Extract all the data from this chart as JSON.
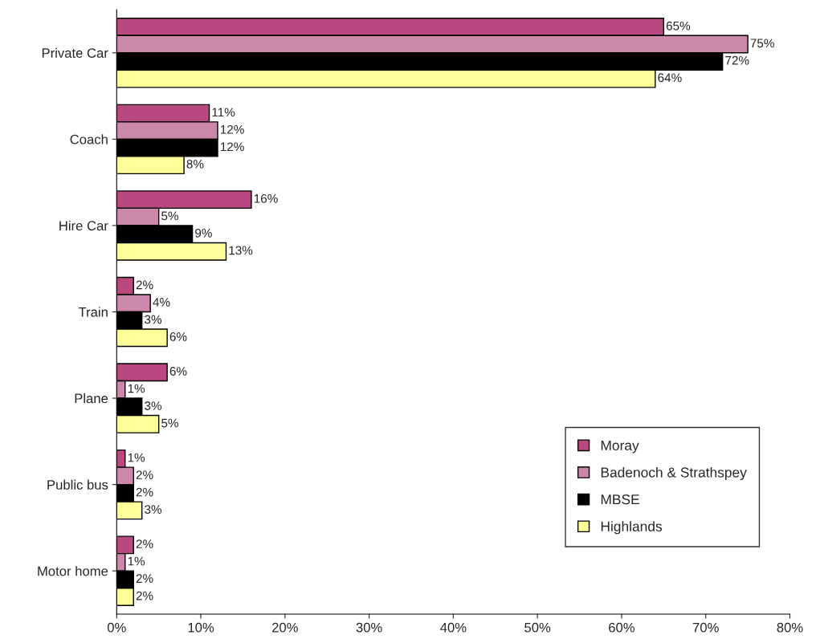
{
  "chart_data": {
    "type": "bar",
    "orientation": "horizontal",
    "categories": [
      "Private Car",
      "Coach",
      "Hire Car",
      "Train",
      "Plane",
      "Public bus",
      "Motor home"
    ],
    "series": [
      {
        "name": "Moray",
        "color": "#b8487f",
        "values": [
          65,
          11,
          16,
          2,
          6,
          1,
          2
        ],
        "value_labels": [
          "65%",
          "11%",
          "16%",
          "2%",
          "6%",
          "1%",
          "2%"
        ]
      },
      {
        "name": "Badenoch & Strathspey",
        "color": "#cc88aa",
        "values": [
          75,
          12,
          5,
          4,
          1,
          2,
          1
        ],
        "value_labels": [
          "75%",
          "12%",
          "5%",
          "4%",
          "1%",
          "2%",
          "1%"
        ]
      },
      {
        "name": "MBSE",
        "color": "#000000",
        "values": [
          72,
          12,
          9,
          3,
          3,
          2,
          2
        ],
        "value_labels": [
          "72%",
          "12%",
          "9%",
          "3%",
          "3%",
          "2%",
          "2%"
        ]
      },
      {
        "name": "Highlands",
        "color": "#ffff99",
        "values": [
          64,
          8,
          13,
          6,
          5,
          3,
          2
        ],
        "value_labels": [
          "64%",
          "8%",
          "13%",
          "6%",
          "5%",
          "3%",
          "2%"
        ]
      }
    ],
    "xlim": [
      0,
      80
    ],
    "xticks": [
      {
        "value": 0,
        "label": "0%"
      },
      {
        "value": 10,
        "label": "10%"
      },
      {
        "value": 20,
        "label": "20%"
      },
      {
        "value": 30,
        "label": "30%"
      },
      {
        "value": 40,
        "label": "40%"
      },
      {
        "value": 50,
        "label": "50%"
      },
      {
        "value": 60,
        "label": "60%"
      },
      {
        "value": 70,
        "label": "70%"
      },
      {
        "value": 80,
        "label": "80%"
      }
    ],
    "grid": false,
    "legend": "bottom right"
  }
}
